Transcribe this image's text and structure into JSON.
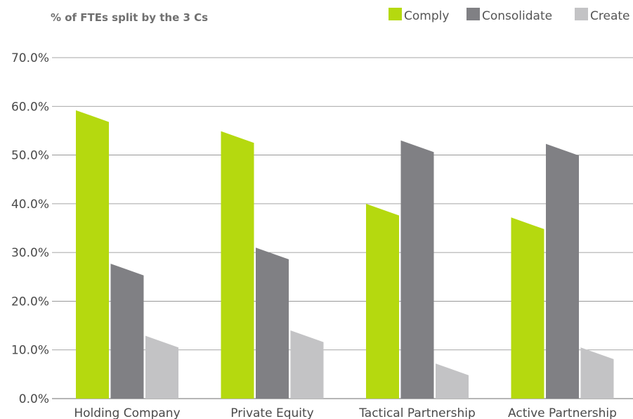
{
  "chart_data": {
    "type": "bar",
    "title": "% of FTEs split by the 3 Cs",
    "categories": [
      "Holding Company",
      "Private Equity",
      "Tactical Partnership",
      "Active Partnership"
    ],
    "series": [
      {
        "name": "Comply",
        "color": "#b5d90f",
        "values": [
          58.0,
          53.7,
          38.8,
          36.0
        ]
      },
      {
        "name": "Consolidate",
        "color": "#808084",
        "values": [
          26.5,
          29.8,
          51.8,
          51.1
        ]
      },
      {
        "name": "Create",
        "color": "#c3c3c5",
        "values": [
          11.7,
          12.8,
          6.0,
          9.3
        ]
      }
    ],
    "ylim": [
      0,
      70
    ],
    "yticks": [
      "0.0%",
      "10.0%",
      "20.0%",
      "30.0%",
      "40.0%",
      "50.0%",
      "60.0%",
      "70.0%"
    ],
    "grid": true,
    "legend_position": "top-right",
    "xlabel": "",
    "ylabel": ""
  }
}
